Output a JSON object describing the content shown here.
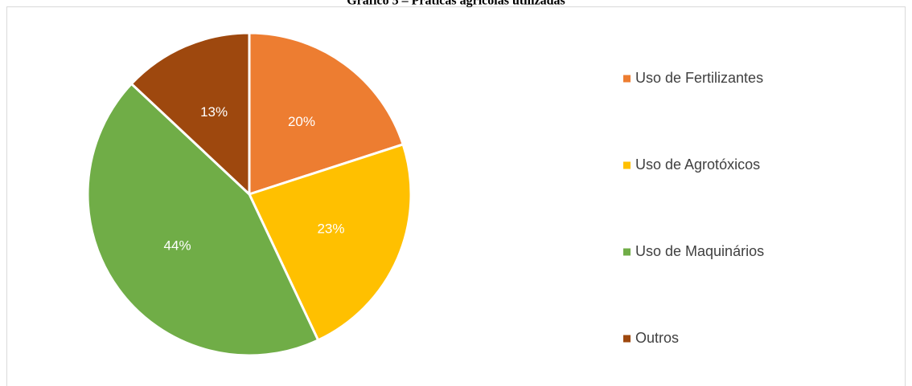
{
  "chart_data": {
    "type": "pie",
    "title": "Gráfico 5 – Práticas agrícolas utilizadas",
    "categories": [
      "Uso de Fertilizantes",
      "Uso de Agrotóxicos",
      "Uso de Maquinários",
      "Outros"
    ],
    "values": [
      20,
      23,
      44,
      13
    ],
    "value_labels": [
      "20%",
      "23%",
      "44%",
      "13%"
    ],
    "colors": [
      "#ED7D31",
      "#FFC000",
      "#70AD47",
      "#9E480E"
    ],
    "legend": "right"
  }
}
